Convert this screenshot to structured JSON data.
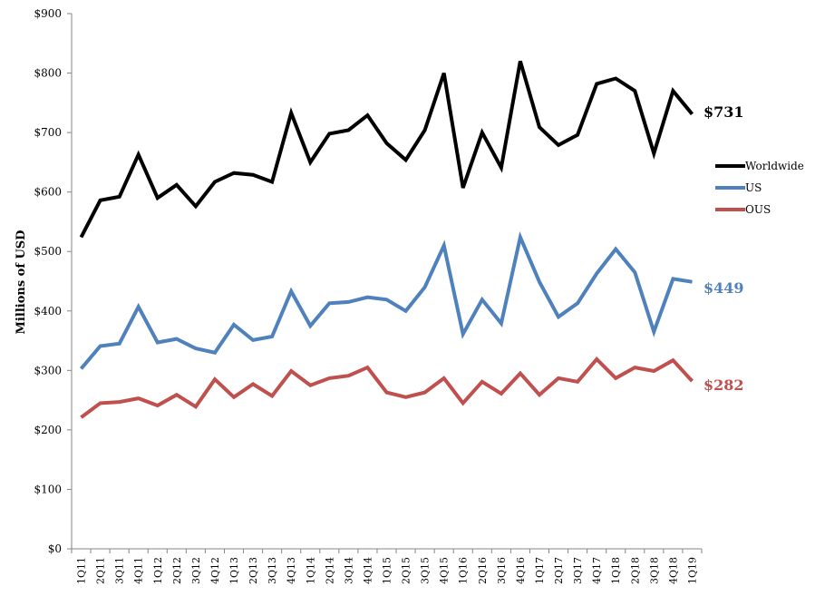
{
  "chart_data": {
    "type": "line",
    "title": "",
    "xlabel": "",
    "ylabel": "Millions of USD",
    "ylim": [
      0,
      900
    ],
    "y_tick_labels": [
      "$0",
      "$100",
      "$200",
      "$300",
      "$400",
      "$500",
      "$600",
      "$700",
      "$800",
      "$900"
    ],
    "y_ticks": [
      0,
      100,
      200,
      300,
      400,
      500,
      600,
      700,
      800,
      900
    ],
    "grid": false,
    "legend_position": "right",
    "categories": [
      "1Q11",
      "2Q11",
      "3Q11",
      "4Q11",
      "1Q12",
      "2Q12",
      "3Q12",
      "4Q12",
      "1Q13",
      "2Q13",
      "3Q13",
      "4Q13",
      "1Q14",
      "2Q14",
      "3Q14",
      "4Q14",
      "1Q15",
      "2Q15",
      "3Q15",
      "4Q15",
      "1Q16",
      "2Q16",
      "3Q16",
      "4Q16",
      "1Q17",
      "2Q17",
      "3Q17",
      "4Q17",
      "1Q18",
      "2Q18",
      "3Q18",
      "4Q18",
      "1Q19"
    ],
    "series": [
      {
        "name": "Worldwide",
        "color": "#000000",
        "end_label": "$731",
        "values": [
          524,
          586,
          592,
          663,
          590,
          612,
          576,
          617,
          632,
          629,
          617,
          733,
          650,
          698,
          704,
          729,
          682,
          654,
          704,
          800,
          607,
          700,
          641,
          820,
          709,
          679,
          696,
          782,
          791,
          770,
          665,
          770,
          731
        ]
      },
      {
        "name": "US",
        "color": "#4f81bd",
        "end_label": "$449",
        "values": [
          303,
          341,
          345,
          407,
          347,
          353,
          337,
          330,
          377,
          351,
          357,
          433,
          375,
          413,
          415,
          423,
          419,
          400,
          440,
          510,
          361,
          419,
          379,
          524,
          449,
          390,
          413,
          463,
          504,
          465,
          365,
          454,
          449
        ]
      },
      {
        "name": "OUS",
        "color": "#c0504d",
        "end_label": "$282",
        "values": [
          221,
          245,
          247,
          253,
          241,
          259,
          239,
          285,
          255,
          277,
          257,
          299,
          275,
          287,
          291,
          305,
          263,
          255,
          263,
          287,
          245,
          281,
          261,
          295,
          259,
          287,
          281,
          319,
          287,
          305,
          299,
          317,
          282
        ]
      }
    ]
  }
}
